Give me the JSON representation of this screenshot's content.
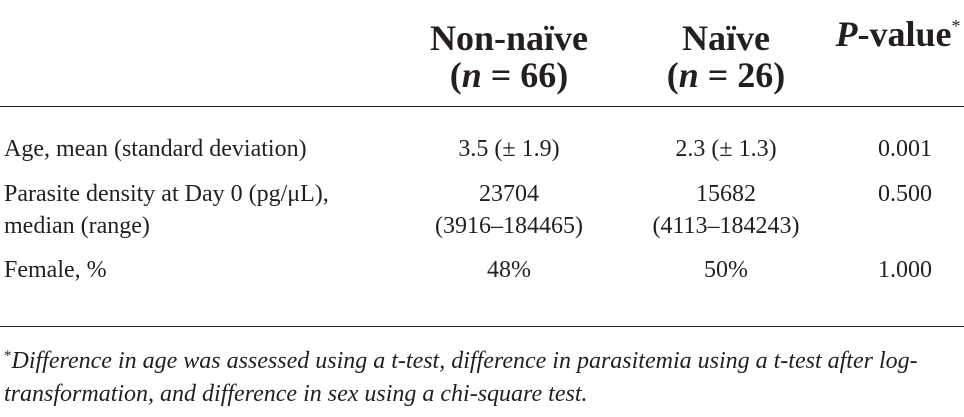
{
  "table": {
    "columns": [
      {
        "line1": "Non-naïve",
        "n_symbol": "n",
        "n_rest": " = 66)"
      },
      {
        "line1": "Naïve",
        "n_symbol": "n",
        "n_rest": " = 26)"
      }
    ],
    "pvalue_header": {
      "p_symbol": "P",
      "rest": "-value",
      "marker": "*"
    },
    "rows": [
      {
        "label_lines": [
          "Age, mean (standard deviation)"
        ],
        "nonnaive_lines": [
          "3.5 (± 1.9)"
        ],
        "naive_lines": [
          "2.3 (± 1.3)"
        ],
        "pvalue": "0.001"
      },
      {
        "label_lines": [
          "Parasite density at Day 0 (pg/μL),",
          "median (range)"
        ],
        "nonnaive_lines": [
          "23704",
          "(3916–184465)"
        ],
        "naive_lines": [
          "15682",
          "(4113–184243)"
        ],
        "pvalue": "0.500"
      },
      {
        "label_lines": [
          "Female, %"
        ],
        "nonnaive_lines": [
          "48%"
        ],
        "naive_lines": [
          "50%"
        ],
        "pvalue": "1.000"
      }
    ]
  },
  "footnote": {
    "marker": "*",
    "text": "Difference in age was assessed using a t-test, difference in parasitemia using a t-test after log-transformation, and difference in sex using a chi-square test."
  }
}
